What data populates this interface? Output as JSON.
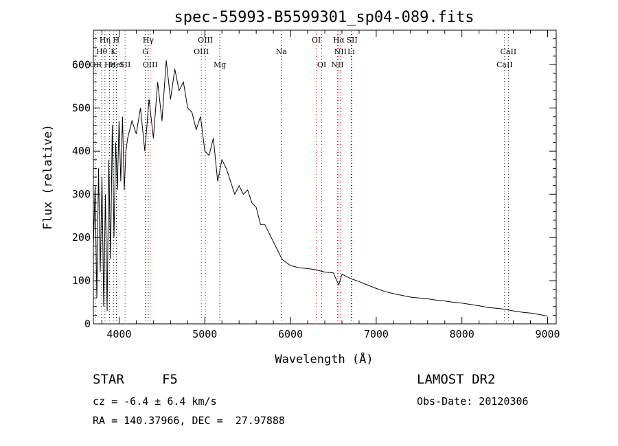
{
  "chart_data": {
    "type": "line",
    "title": "spec-55993-B5599301_sp04-089.fits",
    "xlabel": "Wavelength (Å)",
    "ylabel": "Flux (relative)",
    "xlim": [
      3700,
      9100
    ],
    "ylim": [
      0,
      680
    ],
    "xticks": [
      4000,
      5000,
      6000,
      7000,
      8000,
      9000
    ],
    "yticks": [
      0,
      100,
      200,
      300,
      400,
      500,
      600
    ],
    "grid": false,
    "line_color": "#000000",
    "marker_color_emission": "#ff0000",
    "marker_color_absorption": "#000000",
    "series": [
      {
        "x": [
          3700,
          3720,
          3740,
          3760,
          3780,
          3800,
          3820,
          3840,
          3860,
          3880,
          3900,
          3920,
          3940,
          3960,
          3980,
          4000,
          4020,
          4040,
          4060,
          4080,
          4100,
          4150,
          4200,
          4250,
          4300,
          4350,
          4400,
          4450,
          4500,
          4550,
          4600,
          4650,
          4700,
          4750,
          4800,
          4850,
          4900,
          4950,
          5000,
          5050,
          5100,
          5150,
          5200,
          5250,
          5300,
          5350,
          5400,
          5450,
          5500,
          5550,
          5600,
          5650,
          5700,
          5750,
          5800,
          5850,
          5900,
          5950,
          6000,
          6100,
          6200,
          6300,
          6400,
          6500,
          6563,
          6600,
          6700,
          6800,
          6900,
          7000,
          7100,
          7200,
          7300,
          7400,
          7500,
          7600,
          7700,
          7800,
          7900,
          8000,
          8100,
          8200,
          8300,
          8400,
          8500,
          8600,
          8700,
          8800,
          8900,
          9000
        ],
        "y": [
          180,
          320,
          60,
          360,
          120,
          340,
          40,
          300,
          30,
          380,
          150,
          460,
          200,
          420,
          310,
          470,
          330,
          480,
          310,
          400,
          430,
          470,
          440,
          500,
          400,
          520,
          430,
          560,
          470,
          610,
          520,
          590,
          540,
          560,
          500,
          490,
          450,
          480,
          400,
          390,
          430,
          330,
          380,
          360,
          330,
          300,
          320,
          300,
          310,
          280,
          270,
          230,
          230,
          210,
          190,
          170,
          150,
          142,
          135,
          130,
          128,
          125,
          120,
          118,
          90,
          115,
          105,
          98,
          90,
          82,
          75,
          70,
          66,
          62,
          60,
          58,
          55,
          53,
          50,
          48,
          45,
          42,
          38,
          36,
          34,
          30,
          27,
          25,
          22,
          18
        ]
      }
    ],
    "lines": [
      {
        "label": "Hη",
        "x": 3835,
        "row": 1,
        "kind": "absorption"
      },
      {
        "label": "H",
        "x": 3968,
        "row": 1,
        "kind": "absorption"
      },
      {
        "label": "Hγ",
        "x": 4340,
        "row": 1,
        "kind": "absorption"
      },
      {
        "label": "OIII",
        "x": 5007,
        "row": 1,
        "kind": "emission"
      },
      {
        "label": "OI",
        "x": 6300,
        "row": 1,
        "kind": "emission"
      },
      {
        "label": "Hα",
        "x": 6563,
        "row": 1,
        "kind": "emission"
      },
      {
        "label": "SII",
        "x": 6717,
        "row": 1,
        "kind": "emission"
      },
      {
        "label": "Hθ",
        "x": 3797,
        "row": 2,
        "kind": "absorption"
      },
      {
        "label": "K",
        "x": 3934,
        "row": 2,
        "kind": "absorption"
      },
      {
        "label": "G",
        "x": 4305,
        "row": 2,
        "kind": "absorption"
      },
      {
        "label": "OIII",
        "x": 4959,
        "row": 2,
        "kind": "emission"
      },
      {
        "label": "Na",
        "x": 5893,
        "row": 2,
        "kind": "absorption"
      },
      {
        "label": "NII",
        "x": 6583,
        "row": 2,
        "kind": "emission"
      },
      {
        "label": "Li",
        "x": 6708,
        "row": 2,
        "kind": "absorption"
      },
      {
        "label": "CaII",
        "x": 8542,
        "row": 2,
        "kind": "absorption"
      },
      {
        "label": "OII",
        "x": 3727,
        "row": 3,
        "kind": "emission"
      },
      {
        "label": "Hε",
        "x": 3889,
        "row": 3,
        "kind": "absorption"
      },
      {
        "label": "HeI",
        "x": 3970,
        "row": 3,
        "kind": "absorption"
      },
      {
        "label": "SII",
        "x": 4070,
        "row": 3,
        "kind": "emission"
      },
      {
        "label": "OIII",
        "x": 4363,
        "row": 3,
        "kind": "emission"
      },
      {
        "label": "Mg",
        "x": 5175,
        "row": 3,
        "kind": "absorption"
      },
      {
        "label": "OI",
        "x": 6364,
        "row": 3,
        "kind": "emission"
      },
      {
        "label": "NII",
        "x": 6548,
        "row": 3,
        "kind": "emission"
      },
      {
        "label": "CaII",
        "x": 8498,
        "row": 3,
        "kind": "absorption"
      }
    ]
  },
  "info": {
    "object_class": "STAR",
    "subclass": "F5",
    "survey": "LAMOST DR2",
    "redshift": "cz = -6.4 ± 6.4 km/s",
    "obs_date": "Obs-Date: 20120306",
    "coords": "RA = 140.37966, DEC =  27.97888"
  }
}
